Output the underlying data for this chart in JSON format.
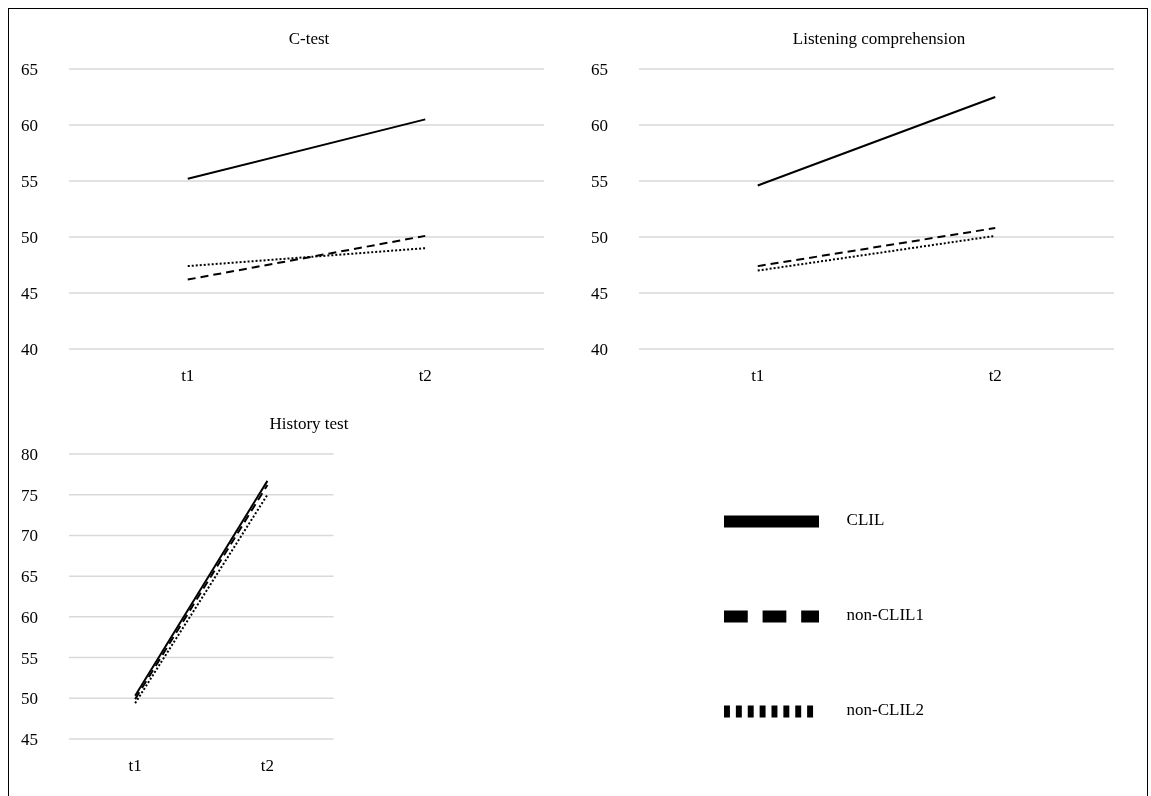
{
  "chart_data": [
    {
      "type": "line",
      "title": "C-test",
      "categories": [
        "t1",
        "t2"
      ],
      "ylim": [
        40,
        65
      ],
      "yticks": [
        40,
        45,
        50,
        55,
        60,
        65
      ],
      "grid": "y",
      "marker": "none",
      "series": [
        {
          "color": "#000000",
          "line_style": "solid",
          "values": [
            55.2,
            60.5
          ]
        },
        {
          "color": "#000000",
          "line_style": "dashed",
          "values": [
            46.2,
            50.1
          ]
        },
        {
          "color": "#000000",
          "line_style": "dotted",
          "values": [
            47.4,
            49.0
          ]
        }
      ]
    },
    {
      "type": "line",
      "title": "Listening comprehension",
      "categories": [
        "t1",
        "t2"
      ],
      "ylim": [
        40,
        65
      ],
      "yticks": [
        40,
        45,
        50,
        55,
        60,
        65
      ],
      "grid": "y",
      "marker": "none",
      "series": [
        {
          "color": "#000000",
          "line_style": "solid",
          "values": [
            54.6,
            62.5
          ]
        },
        {
          "color": "#000000",
          "line_style": "dashed",
          "values": [
            47.4,
            50.8
          ]
        },
        {
          "color": "#000000",
          "line_style": "dotted",
          "values": [
            47.0,
            50.1
          ]
        }
      ]
    },
    {
      "type": "line",
      "title": "History test",
      "categories": [
        "t1",
        "t2"
      ],
      "ylim": [
        45,
        80
      ],
      "yticks": [
        45,
        50,
        55,
        60,
        65,
        70,
        75,
        80
      ],
      "grid": "y",
      "marker": "none",
      "legend": "right",
      "series": [
        {
          "name": "CLIL",
          "color": "#000000",
          "line_style": "solid",
          "values": [
            50.3,
            76.7
          ]
        },
        {
          "name": "non-CLIL1",
          "color": "#000000",
          "line_style": "dashed",
          "values": [
            49.9,
            76.2
          ]
        },
        {
          "name": "non-CLIL2",
          "color": "#000000",
          "line_style": "dotted",
          "values": [
            49.4,
            75.0
          ]
        }
      ]
    }
  ]
}
